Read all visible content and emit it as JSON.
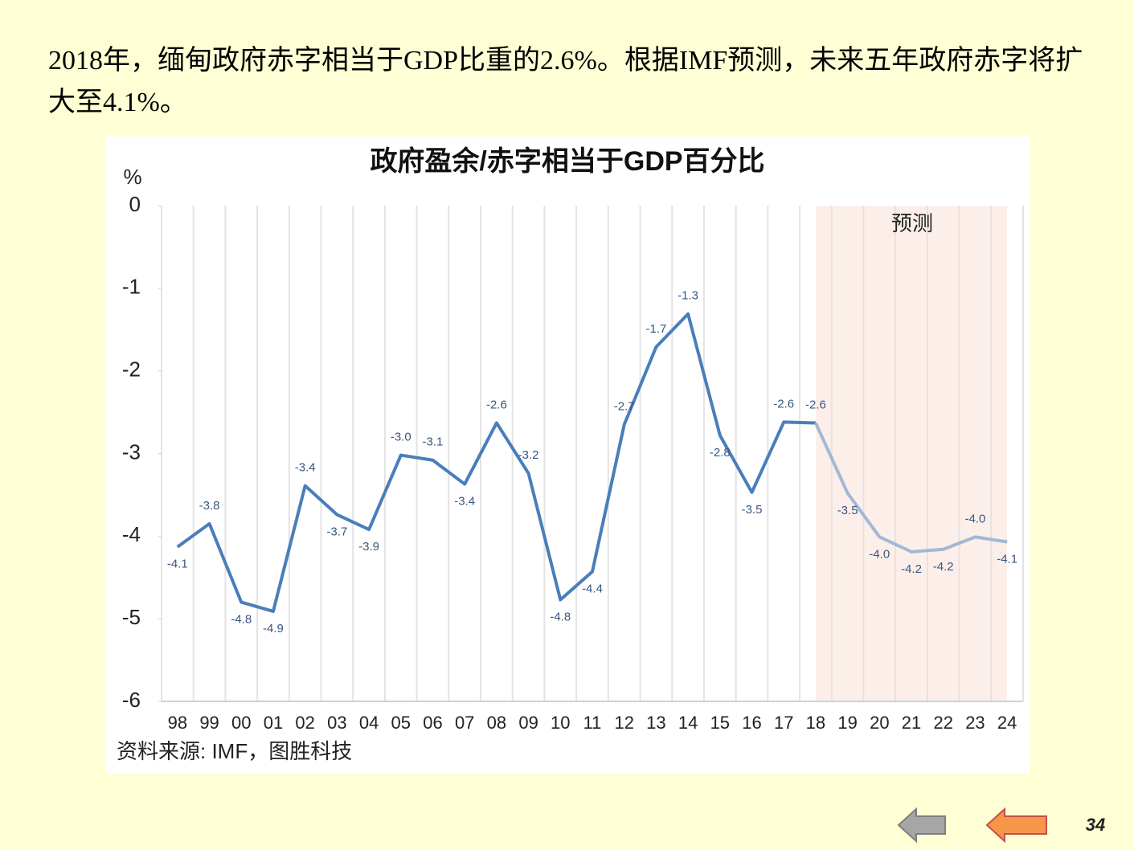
{
  "heading": "2018年，缅甸政府赤字相当于GDP比重的2.6%。根据IMF预测，未来五年政府赤字将扩大至4.1%。",
  "chart_data": {
    "type": "line",
    "title": "政府盈余/赤字相当于GDP百分比",
    "y_label": "%",
    "categories": [
      "98",
      "99",
      "00",
      "01",
      "02",
      "03",
      "04",
      "05",
      "06",
      "07",
      "08",
      "09",
      "10",
      "11",
      "12",
      "13",
      "14",
      "15",
      "16",
      "17",
      "18",
      "19",
      "20",
      "21",
      "22",
      "23",
      "24"
    ],
    "values": [
      -4.13,
      -3.85,
      -4.8,
      -4.91,
      -3.39,
      -3.74,
      -3.92,
      -3.02,
      -3.08,
      -3.37,
      -2.63,
      -3.24,
      -4.77,
      -4.43,
      -2.65,
      -1.71,
      -1.31,
      -2.78,
      -3.47,
      -2.62,
      -2.63,
      -3.48,
      -4.01,
      -4.19,
      -4.16,
      -4.01,
      -4.07
    ],
    "value_labels": [
      "-4.1",
      "-3.8",
      "-4.8",
      "-4.9",
      "-3.4",
      "-3.7",
      "-3.9",
      "-3.0",
      "-3.1",
      "-3.4",
      "-2.6",
      "-3.2",
      "-4.8",
      "-4.4",
      "-2.7",
      "-1.7",
      "-1.3",
      "-2.8",
      "-3.5",
      "-2.6",
      "-2.6",
      "-3.5",
      "-4.0",
      "-4.2",
      "-4.2",
      "-4.0",
      "-4.1"
    ],
    "color": "#4a7ebb",
    "forecast": {
      "label": "预测",
      "from": "18",
      "to": "24",
      "color": "#a3b8d6",
      "fill": "#fcefe9"
    },
    "ylim": [
      -6,
      0
    ],
    "yticks": [
      0,
      -1,
      -2,
      -3,
      -4,
      -5,
      -6
    ],
    "grid": "x",
    "source": "资料来源: IMF，图胜科技"
  },
  "page_number": "34"
}
